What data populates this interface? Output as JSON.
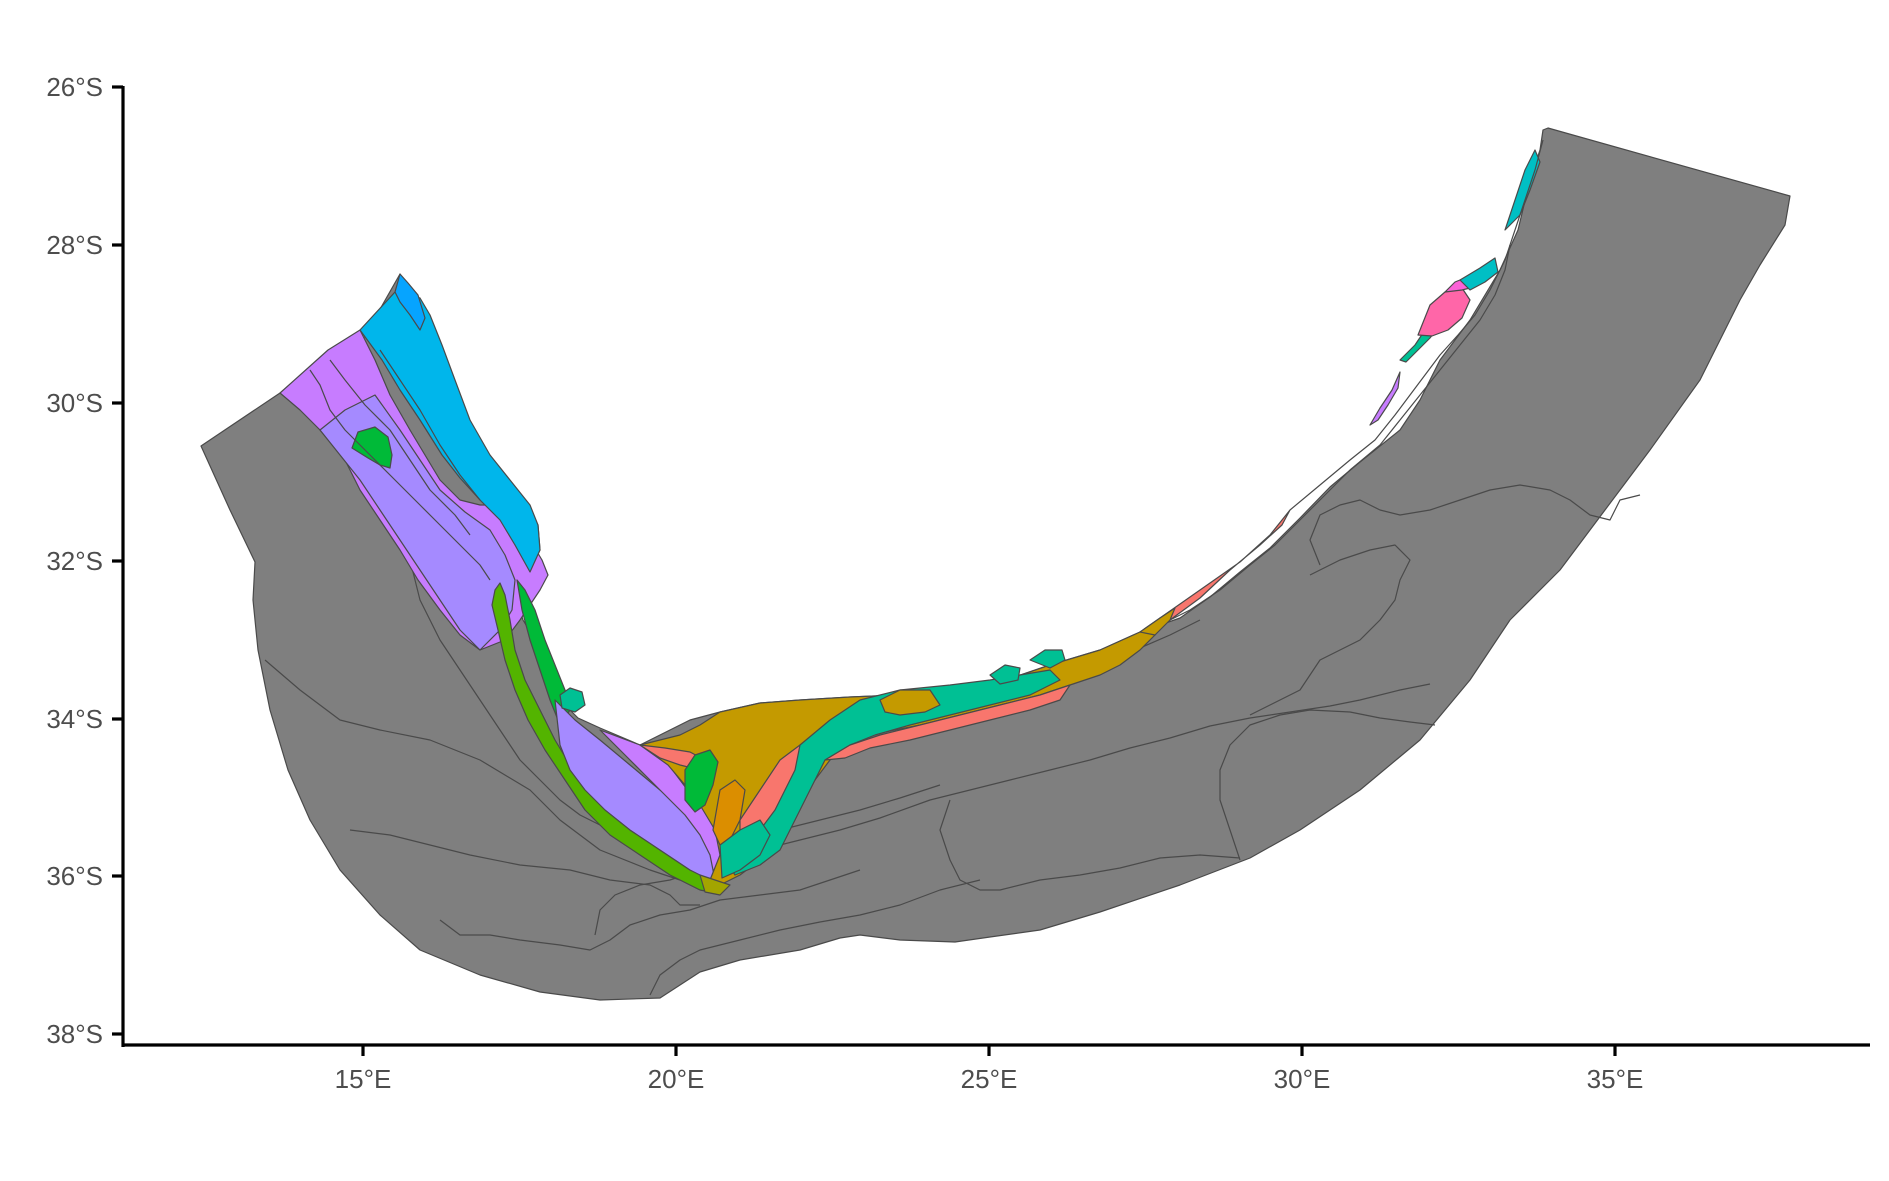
{
  "axes": {
    "y_ticks": [
      "26°S",
      "28°S",
      "30°S",
      "32°S",
      "34°S",
      "36°S",
      "38°S"
    ],
    "x_ticks": [
      "15°E",
      "20°E",
      "25°E",
      "30°E",
      "35°E"
    ]
  },
  "map": {
    "lon_range": [
      11.2,
      39.2
    ],
    "lat_range": [
      -38.2,
      -26
    ],
    "offshore_color": "#7f7f7f",
    "boundary_color": "#4a4a4a",
    "shelf_colors": {
      "salmon": "#f8766d",
      "mustard": "#c49a00",
      "olive": "#a3a500",
      "green": "#00ba38",
      "lime": "#53b400",
      "teal": "#00c094",
      "turquoise": "#00bfc4",
      "cyan": "#00b6eb",
      "blue": "#06a4ff",
      "violet": "#a58aff",
      "purple": "#c77cff",
      "magenta": "#fb61d7",
      "pink": "#ff66a8",
      "orange": "#db8e00"
    },
    "legend": "none"
  }
}
